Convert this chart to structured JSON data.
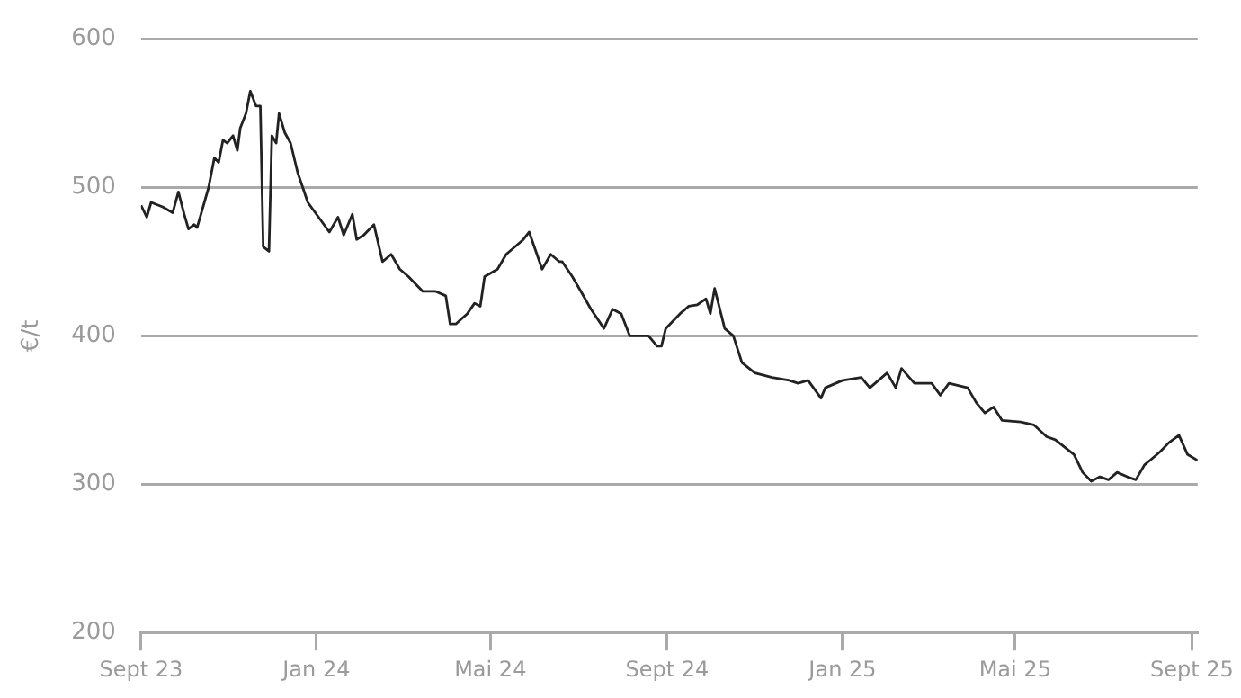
{
  "chart_data": {
    "type": "line",
    "ylabel": "€/t",
    "x": [
      "2023-09-01",
      "2023-09-05",
      "2023-09-08",
      "2023-09-16",
      "2023-09-23",
      "2023-09-27",
      "2023-10-01",
      "2023-10-04",
      "2023-10-08",
      "2023-10-10",
      "2023-10-18",
      "2023-10-22",
      "2023-10-25",
      "2023-10-28",
      "2023-10-31",
      "2023-11-04",
      "2023-11-07",
      "2023-11-09",
      "2023-11-13",
      "2023-11-16",
      "2023-11-20",
      "2023-11-23",
      "2023-11-25",
      "2023-11-29",
      "2023-12-01",
      "2023-12-04",
      "2023-12-06",
      "2023-12-10",
      "2023-12-14",
      "2023-12-19",
      "2023-12-26",
      "2024-01-04",
      "2024-01-10",
      "2024-01-16",
      "2024-01-20",
      "2024-01-26",
      "2024-01-29",
      "2024-02-03",
      "2024-02-10",
      "2024-02-16",
      "2024-02-22",
      "2024-02-28",
      "2024-03-05",
      "2024-03-15",
      "2024-03-24",
      "2024-03-31",
      "2024-04-03",
      "2024-04-07",
      "2024-04-15",
      "2024-04-20",
      "2024-04-24",
      "2024-04-27",
      "2024-05-06",
      "2024-05-12",
      "2024-05-18",
      "2024-05-24",
      "2024-05-28",
      "2024-06-06",
      "2024-06-12",
      "2024-06-18",
      "2024-06-20",
      "2024-06-27",
      "2024-07-03",
      "2024-07-10",
      "2024-07-19",
      "2024-07-25",
      "2024-07-31",
      "2024-08-06",
      "2024-08-19",
      "2024-08-25",
      "2024-08-28",
      "2024-08-31",
      "2024-09-10",
      "2024-09-16",
      "2024-09-22",
      "2024-09-28",
      "2024-10-01",
      "2024-10-04",
      "2024-10-11",
      "2024-10-17",
      "2024-10-23",
      "2024-11-01",
      "2024-11-13",
      "2024-11-25",
      "2024-12-01",
      "2024-12-08",
      "2024-12-17",
      "2024-12-20",
      "2025-01-01",
      "2025-01-14",
      "2025-01-20",
      "2025-01-26",
      "2025-02-01",
      "2025-02-07",
      "2025-02-11",
      "2025-02-20",
      "2025-03-04",
      "2025-03-10",
      "2025-03-16",
      "2025-03-29",
      "2025-04-04",
      "2025-04-10",
      "2025-04-16",
      "2025-04-22",
      "2025-05-05",
      "2025-05-14",
      "2025-05-23",
      "2025-05-29",
      "2025-06-11",
      "2025-06-17",
      "2025-06-23",
      "2025-06-29",
      "2025-07-05",
      "2025-07-11",
      "2025-07-18",
      "2025-07-24",
      "2025-07-30",
      "2025-08-04",
      "2025-08-10",
      "2025-08-16",
      "2025-08-23",
      "2025-08-29",
      "2025-09-05"
    ],
    "series": [
      {
        "color": "#222222",
        "values": [
          488,
          480,
          490,
          487,
          483,
          497,
          482,
          472,
          475,
          473,
          500,
          520,
          517,
          532,
          530,
          535,
          525,
          540,
          550,
          565,
          555,
          555,
          460,
          457,
          535,
          530,
          550,
          537,
          530,
          510,
          490,
          478,
          470,
          480,
          468,
          482,
          465,
          468,
          475,
          450,
          455,
          445,
          440,
          430,
          430,
          427,
          408,
          408,
          415,
          422,
          420,
          440,
          445,
          455,
          460,
          465,
          470,
          445,
          455,
          450,
          450,
          440,
          430,
          418,
          405,
          418,
          415,
          400,
          400,
          393,
          393,
          405,
          415,
          420,
          421,
          425,
          415,
          432,
          405,
          400,
          382,
          375,
          372,
          370,
          368,
          370,
          358,
          365,
          370,
          372,
          365,
          370,
          375,
          365,
          378,
          368,
          368,
          360,
          368,
          365,
          355,
          348,
          352,
          343,
          342,
          340,
          332,
          330,
          320,
          308,
          302,
          305,
          303,
          308,
          305,
          303,
          313,
          317,
          322,
          328,
          333,
          320,
          316
        ]
      }
    ],
    "xlim": [
      "2023-09-01",
      "2025-09-05"
    ],
    "xticks": [
      {
        "value": "2023-09-01",
        "label": "Sept 23"
      },
      {
        "value": "2024-01-01",
        "label": "Jan 24"
      },
      {
        "value": "2024-05-01",
        "label": "Mai 24"
      },
      {
        "value": "2024-09-01",
        "label": "Sept 24"
      },
      {
        "value": "2025-01-01",
        "label": "Jan 25"
      },
      {
        "value": "2025-05-01",
        "label": "Mai 25"
      },
      {
        "value": "2025-09-01",
        "label": "Sept 25"
      }
    ],
    "ylim": [
      200,
      600
    ],
    "yticks": [
      200,
      300,
      400,
      500,
      600
    ],
    "grid": "y",
    "legend": false,
    "marker": "none",
    "line_style": "solid"
  }
}
